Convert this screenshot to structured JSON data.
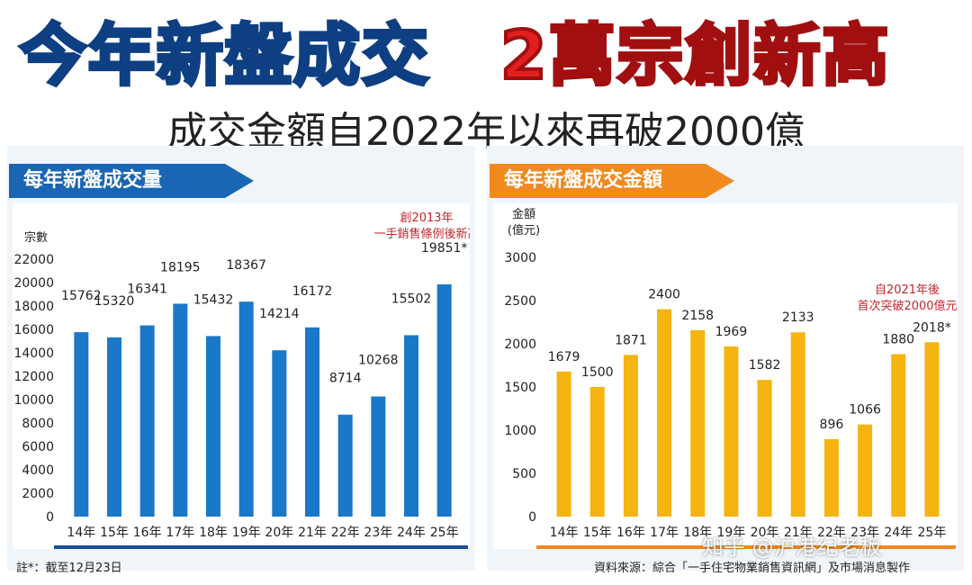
{
  "headline": {
    "part1": "今年新盤成交",
    "part2": "2萬宗創新高",
    "subtitle": "成交金額自2022年以來再破2000億"
  },
  "colors": {
    "blue": "#1a78c8",
    "orange": "#f5b40f",
    "highlight_red": "#c0262b"
  },
  "chart_data": [
    {
      "type": "bar",
      "title": "每年新盤成交量",
      "ylabel": "宗數",
      "ylim": [
        0,
        22000
      ],
      "yticks": [
        0,
        2000,
        4000,
        6000,
        8000,
        10000,
        12000,
        14000,
        16000,
        18000,
        20000,
        22000
      ],
      "categories": [
        "14年",
        "15年",
        "16年",
        "17年",
        "18年",
        "19年",
        "20年",
        "21年",
        "22年",
        "23年",
        "24年",
        "25年"
      ],
      "values": [
        15762,
        15320,
        16341,
        18195,
        15432,
        18367,
        14214,
        16172,
        8714,
        10268,
        15502,
        19851
      ],
      "value_labels": [
        "15762",
        "15320",
        "16341",
        "18195",
        "15432",
        "18367",
        "14214",
        "16172",
        "8714",
        "10268",
        "15502",
        "19851*"
      ],
      "annotation": [
        "創2013年",
        "一手銷售條例後新高"
      ],
      "grid": false
    },
    {
      "type": "bar",
      "title": "每年新盤成交金額",
      "ylabel": [
        "金額",
        "(億元)"
      ],
      "ylim": [
        0,
        3000
      ],
      "yticks": [
        0,
        500,
        1000,
        1500,
        2000,
        2500,
        3000
      ],
      "categories": [
        "14年",
        "15年",
        "16年",
        "17年",
        "18年",
        "19年",
        "20年",
        "21年",
        "22年",
        "23年",
        "24年",
        "25年"
      ],
      "values": [
        1679,
        1500,
        1871,
        2400,
        2158,
        1969,
        1582,
        2133,
        896,
        1066,
        1880,
        2018
      ],
      "value_labels": [
        "1679",
        "1500",
        "1871",
        "2400",
        "2158",
        "1969",
        "1582",
        "2133",
        "896",
        "1066",
        "1880",
        "2018*"
      ],
      "annotation": [
        "自2021年後",
        "首次突破2000億元"
      ],
      "grid": false
    }
  ],
  "footer": {
    "note": "註*：截至12月23日",
    "source": "資料來源：綜合「一手住宅物業銷售資訊網」及市場消息製作",
    "watermark": "知乎 @沪港纪老板"
  }
}
